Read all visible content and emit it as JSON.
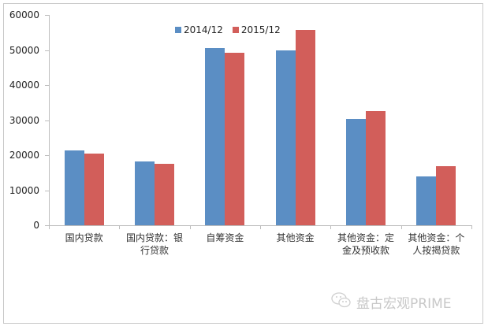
{
  "chart_data": {
    "type": "bar",
    "title": "",
    "xlabel": "",
    "ylabel": "",
    "ylim": [
      0,
      60000
    ],
    "yticks": [
      0,
      10000,
      20000,
      30000,
      40000,
      50000,
      60000
    ],
    "grid": false,
    "legend_position": "top",
    "categories": [
      "国内贷款",
      "国内贷款：银行贷款",
      "自筹资金",
      "其他资金",
      "其他资金：定金及预收款",
      "其他资金：个人按揭贷款"
    ],
    "category_lines": [
      [
        "国内贷款"
      ],
      [
        "国内贷款：银",
        "行贷款"
      ],
      [
        "自筹资金"
      ],
      [
        "其他资金"
      ],
      [
        "其他资金：定",
        "金及预收款"
      ],
      [
        "其他资金：个",
        "人按揭贷款"
      ]
    ],
    "series": [
      {
        "name": "2014/12",
        "color": "#5b8ec4",
        "values": [
          21300,
          18200,
          50500,
          49900,
          30300,
          13900
        ]
      },
      {
        "name": "2015/12",
        "color": "#d25e5a",
        "values": [
          20400,
          17500,
          49200,
          55700,
          32600,
          16800
        ]
      }
    ]
  },
  "yaxis_labels": [
    "0",
    "10000",
    "20000",
    "30000",
    "40000",
    "50000",
    "60000"
  ],
  "legend": [
    {
      "label": "2014/12",
      "color": "#5b8ec4"
    },
    {
      "label": "2015/12",
      "color": "#d25e5a"
    }
  ],
  "watermark": {
    "icon": "wechat-icon",
    "text": "盘古宏观PRIME"
  }
}
